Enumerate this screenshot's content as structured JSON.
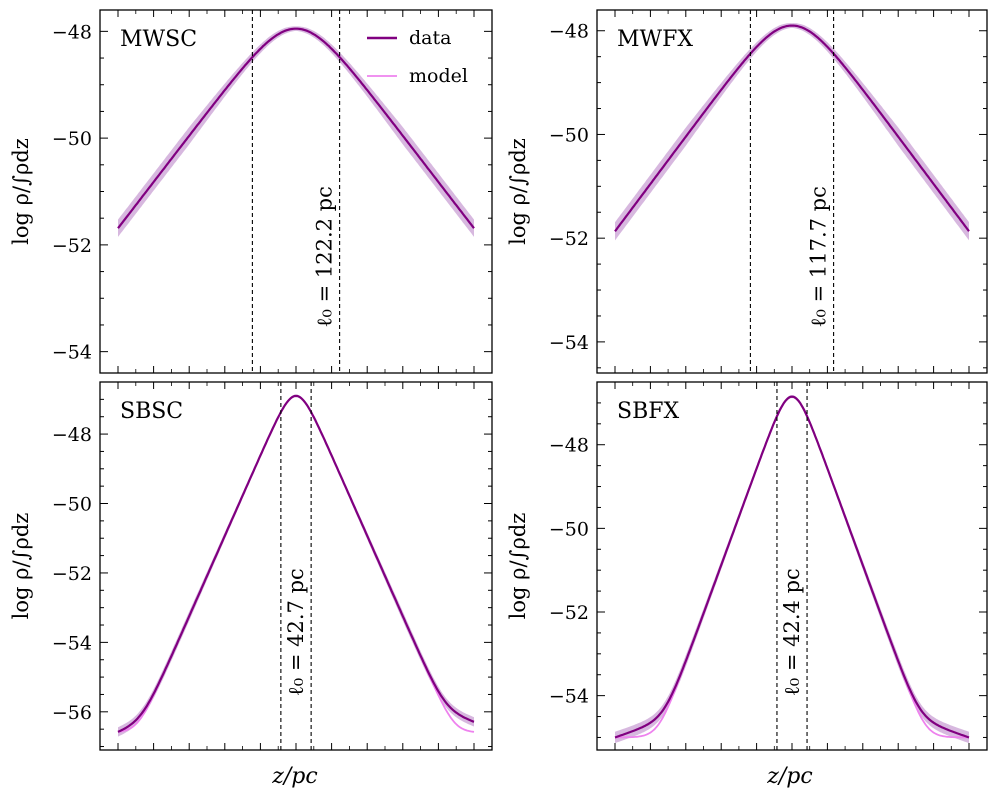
{
  "figure": {
    "xlabel": "z/pc",
    "legend": {
      "placement": "top-right of first panel",
      "entries": [
        {
          "label": "data",
          "color": "#800080"
        },
        {
          "label": "model",
          "color": "#ee82ee"
        }
      ]
    },
    "colors": {
      "data": "#800080",
      "model": "#ee82ee",
      "band": "#c9a0d4",
      "guide": "#000000"
    }
  },
  "chart_data": [
    {
      "type": "line",
      "title": "MWSC",
      "xlabel": "",
      "ylabel": "log ρ/∫ρdz",
      "xlim": [
        -1,
        1
      ],
      "ylim": [
        -54.4,
        -47.6
      ],
      "yticks": [
        -54,
        -52,
        -50,
        -48
      ],
      "ytick_labels": [
        "−54",
        "−52",
        "−50",
        "−48"
      ],
      "center_log": -47.95,
      "sech_width": 0.2,
      "floor": -53.9,
      "tail_left": -53.9,
      "tail_right": -53.85,
      "tail_scale": 0.45,
      "band": 0.12,
      "guides": [
        -0.245,
        0.245
      ],
      "annotation": "ℓ₀ = 122.2 pc",
      "show_legend": true,
      "series": [
        {
          "name": "data",
          "profile": "sech² core + exponential halo tail"
        },
        {
          "name": "model",
          "profile": "sech² (isothermal) profile"
        }
      ]
    },
    {
      "type": "line",
      "title": "MWFX",
      "xlabel": "",
      "ylabel": "log ρ/∫ρdz",
      "xlim": [
        -1,
        1
      ],
      "ylim": [
        -54.6,
        -47.6
      ],
      "yticks": [
        -54,
        -52,
        -50,
        -48
      ],
      "ytick_labels": [
        "−54",
        "−52",
        "−50",
        "−48"
      ],
      "center_log": -47.9,
      "sech_width": 0.19,
      "floor": -54.1,
      "tail_left": -54.1,
      "tail_right": -54.0,
      "tail_scale": 0.42,
      "band": 0.13,
      "guides": [
        -0.235,
        0.235
      ],
      "annotation": "ℓ₀ = 117.7 pc",
      "show_legend": false,
      "series": [
        {
          "name": "data",
          "profile": "sech² core + exponential halo tail"
        },
        {
          "name": "model",
          "profile": "sech² (isothermal) profile"
        }
      ]
    },
    {
      "type": "line",
      "title": "SBSC",
      "xlabel": "z/pc",
      "ylabel": "log ρ/∫ρdz",
      "xlim": [
        -1,
        1
      ],
      "ylim": [
        -57.1,
        -46.5
      ],
      "yticks": [
        -56,
        -54,
        -52,
        -50,
        -48
      ],
      "ytick_labels": [
        "−56",
        "−54",
        "−52",
        "−50",
        "−48"
      ],
      "center_log": -46.9,
      "sech_width": 0.075,
      "floor": -56.6,
      "tail_left": -56.6,
      "tail_right": -56.3,
      "tail_scale": 0.24,
      "band": 0.1,
      "guides": [
        -0.085,
        0.085
      ],
      "annotation": "ℓ₀ = 42.7 pc",
      "show_legend": false,
      "series": [
        {
          "name": "data",
          "profile": "sech² core + exponential halo tail"
        },
        {
          "name": "model",
          "profile": "sech² (isothermal) profile"
        }
      ]
    },
    {
      "type": "line",
      "title": "SBFX",
      "xlabel": "z/pc",
      "ylabel": "log ρ/∫ρdz",
      "xlim": [
        -1,
        1
      ],
      "ylim": [
        -55.3,
        -46.5
      ],
      "yticks": [
        -54,
        -52,
        -50,
        -48
      ],
      "ytick_labels": [
        "−54",
        "−52",
        "−50",
        "−48"
      ],
      "center_log": -46.85,
      "sech_width": 0.075,
      "floor": -55.0,
      "tail_left": -55.0,
      "tail_right": -55.0,
      "tail_scale": 0.3,
      "band": 0.1,
      "guides": [
        -0.085,
        0.085
      ],
      "annotation": "ℓ₀ = 42.4 pc",
      "show_legend": false,
      "series": [
        {
          "name": "data",
          "profile": "sech² core + exponential halo tail"
        },
        {
          "name": "model",
          "profile": "sech² (isothermal) profile"
        }
      ]
    }
  ]
}
